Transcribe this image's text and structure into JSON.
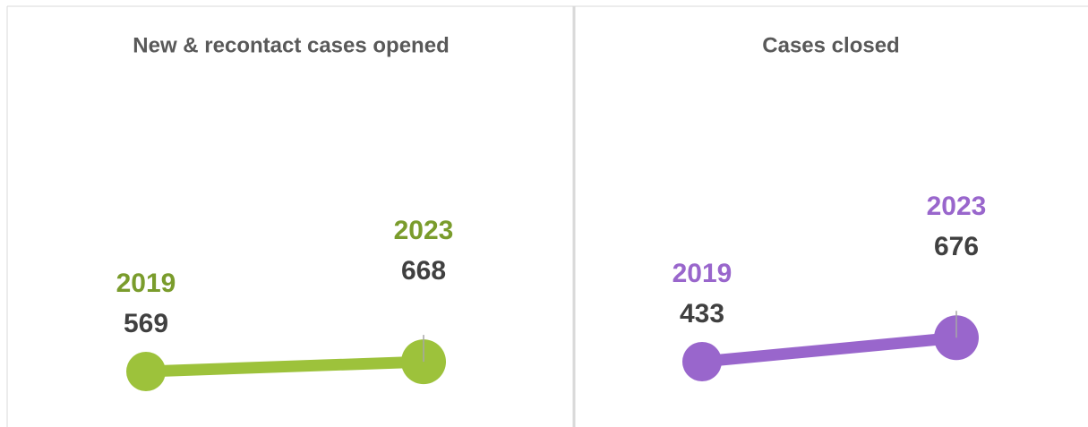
{
  "chart_data": [
    {
      "type": "line",
      "title": "New & recontact cases opened",
      "categories": [
        "2019",
        "2023"
      ],
      "values": [
        569,
        668
      ],
      "color": "#9dc23b",
      "label_color": "#7a9c2c"
    },
    {
      "type": "line",
      "title": "Cases closed",
      "categories": [
        "2019",
        "2023"
      ],
      "values": [
        433,
        676
      ],
      "color": "#9966cc",
      "label_color": "#9966cc"
    }
  ]
}
